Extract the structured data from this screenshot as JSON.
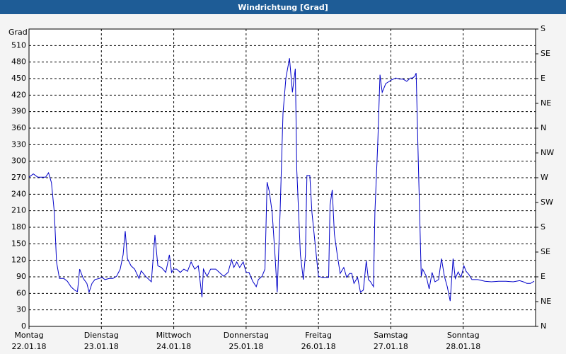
{
  "chart_data": {
    "type": "line",
    "title": "Windrichtung [Grad]",
    "y_label": "Grad",
    "xlim": [
      0,
      7
    ],
    "xticks": [
      {
        "value": 0,
        "label": "Montag"
      },
      {
        "value": 1,
        "label": "Dienstag"
      },
      {
        "value": 2,
        "label": "Mittwoch"
      },
      {
        "value": 3,
        "label": "Donnerstag"
      },
      {
        "value": 4,
        "label": "Freitag"
      },
      {
        "value": 5,
        "label": "Samstag"
      },
      {
        "value": 6,
        "label": "Sonntag"
      }
    ],
    "xtick_dates": [
      "22.01.18",
      "23.01.18",
      "24.01.18",
      "25.01.18",
      "26.01.18",
      "27.01.18",
      "28.01.18"
    ],
    "ylim": [
      0,
      540
    ],
    "yticks": [
      0,
      30,
      60,
      90,
      120,
      150,
      180,
      210,
      240,
      270,
      300,
      330,
      360,
      390,
      420,
      450,
      480,
      510
    ],
    "y2lim": [
      0,
      540
    ],
    "y2ticks": [
      {
        "value": 0,
        "label": "N"
      },
      {
        "value": 45,
        "label": "NE"
      },
      {
        "value": 90,
        "label": "E"
      },
      {
        "value": 135,
        "label": "SE"
      },
      {
        "value": 180,
        "label": "S"
      },
      {
        "value": 225,
        "label": "SW"
      },
      {
        "value": 270,
        "label": "W"
      },
      {
        "value": 315,
        "label": "NW"
      },
      {
        "value": 360,
        "label": "N"
      },
      {
        "value": 405,
        "label": "NE"
      },
      {
        "value": 450,
        "label": "E"
      },
      {
        "value": 495,
        "label": "SE"
      },
      {
        "value": 540,
        "label": "S"
      }
    ],
    "grid": true,
    "x": [
      0,
      0.06,
      0.12,
      0.18,
      0.23,
      0.27,
      0.31,
      0.35,
      0.38,
      0.42,
      0.48,
      0.53,
      0.58,
      0.63,
      0.67,
      0.7,
      0.75,
      0.8,
      0.83,
      0.87,
      0.91,
      0.97,
      1.01,
      1.05,
      1.11,
      1.16,
      1.21,
      1.26,
      1.3,
      1.33,
      1.36,
      1.41,
      1.46,
      1.52,
      1.55,
      1.61,
      1.69,
      1.74,
      1.78,
      1.83,
      1.89,
      1.94,
      1.97,
      2.0,
      2.04,
      2.09,
      2.14,
      2.19,
      2.24,
      2.29,
      2.34,
      2.39,
      2.41,
      2.46,
      2.51,
      2.58,
      2.63,
      2.69,
      2.75,
      2.8,
      2.83,
      2.87,
      2.91,
      2.96,
      3.0,
      3.04,
      3.09,
      3.14,
      3.17,
      3.22,
      3.26,
      3.29,
      3.32,
      3.36,
      3.4,
      3.43,
      3.47,
      3.51,
      3.55,
      3.6,
      3.64,
      3.68,
      3.7,
      3.75,
      3.79,
      3.82,
      3.84,
      3.88,
      3.91,
      3.95,
      4.0,
      4.05,
      4.1,
      4.14,
      4.16,
      4.19,
      4.22,
      4.26,
      4.3,
      4.35,
      4.39,
      4.43,
      4.46,
      4.49,
      4.54,
      4.58,
      4.62,
      4.66,
      4.69,
      4.72,
      4.76,
      4.78,
      4.82,
      4.85,
      4.88,
      4.93,
      4.98,
      5.0,
      5.07,
      5.12,
      5.17,
      5.22,
      5.27,
      5.3,
      5.33,
      5.35,
      5.38,
      5.42,
      5.44,
      5.49,
      5.53,
      5.57,
      5.61,
      5.66,
      5.7,
      5.74,
      5.78,
      5.82,
      5.86,
      5.89,
      5.93,
      5.97,
      6.01,
      6.04,
      6.08,
      6.12,
      6.2,
      6.3,
      6.39,
      6.49,
      6.59,
      6.69,
      6.78,
      6.83,
      6.88,
      6.93,
      6.98
    ],
    "series": [
      {
        "name": "Windrichtung",
        "color": "#0000c8",
        "values": [
          271,
          277,
          271,
          271,
          271,
          279,
          261,
          207,
          117,
          87,
          87,
          82,
          72,
          66,
          63,
          104,
          87,
          78,
          62,
          78,
          85,
          87,
          89,
          85,
          87,
          87,
          91,
          104,
          130,
          173,
          123,
          110,
          104,
          87,
          101,
          91,
          81,
          166,
          110,
          107,
          98,
          130,
          98,
          104,
          104,
          98,
          104,
          100,
          117,
          104,
          110,
          53,
          104,
          91,
          104,
          104,
          98,
          91,
          98,
          121,
          107,
          117,
          107,
          117,
          98,
          98,
          82,
          72,
          85,
          91,
          104,
          262,
          245,
          207,
          127,
          62,
          207,
          387,
          451,
          487,
          425,
          468,
          284,
          130,
          85,
          130,
          274,
          274,
          207,
          155,
          91,
          89,
          89,
          89,
          220,
          248,
          168,
          130,
          96,
          107,
          89,
          96,
          96,
          78,
          89,
          62,
          66,
          119,
          85,
          81,
          72,
          207,
          335,
          457,
          425,
          441,
          445,
          447,
          451,
          449,
          449,
          445,
          451,
          451,
          454,
          460,
          297,
          91,
          104,
          91,
          68,
          98,
          81,
          85,
          123,
          91,
          72,
          46,
          123,
          87,
          99,
          89,
          110,
          100,
          94,
          85,
          85,
          82,
          81,
          82,
          82,
          81,
          83,
          81,
          78,
          78,
          82
        ]
      }
    ]
  }
}
